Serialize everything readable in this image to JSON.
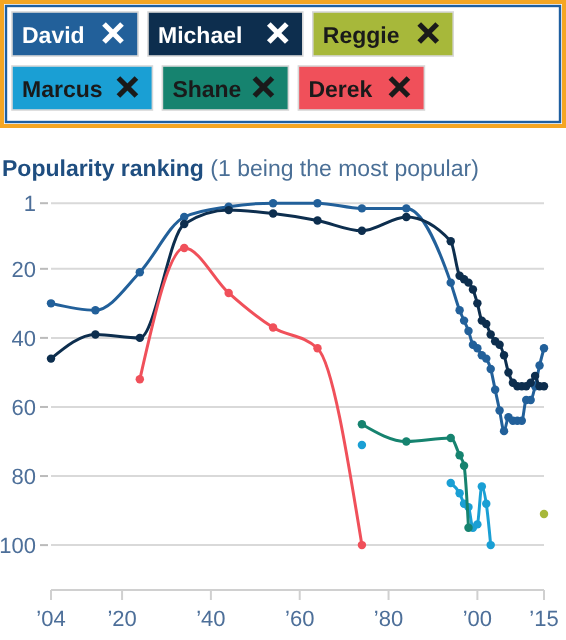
{
  "chart_data": {
    "type": "line",
    "title": "Popularity ranking",
    "subtitle": "(1 being the most popular)",
    "xlim": [
      1904,
      2015
    ],
    "xticks": [
      {
        "value": 1904,
        "label": "’04"
      },
      {
        "value": 1920,
        "label": "’20"
      },
      {
        "value": 1940,
        "label": "’40"
      },
      {
        "value": 1960,
        "label": "’60"
      },
      {
        "value": 1980,
        "label": "’80"
      },
      {
        "value": 2000,
        "label": "’00"
      },
      {
        "value": 2015,
        "label": "’15"
      }
    ],
    "ylim": [
      113,
      1
    ],
    "yticks": [
      1,
      20,
      40,
      60,
      80,
      100
    ],
    "grid": "y",
    "legend": "top",
    "marker": "circle",
    "series": [
      {
        "name": "David",
        "color": "#22609a",
        "x": [
          1904,
          1914,
          1924,
          1934,
          1944,
          1954,
          1964,
          1974,
          1984,
          1994,
          1996,
          1997,
          1998,
          1999,
          2000,
          2001,
          2002,
          2003,
          2004,
          2005,
          2006,
          2007,
          2008,
          2009,
          2010,
          2011,
          2012,
          2013,
          2014,
          2015
        ],
        "values": [
          30,
          32,
          21,
          5,
          2,
          1,
          1,
          2.5,
          2.5,
          24,
          32,
          35,
          38,
          42,
          43,
          45,
          46,
          49,
          55,
          61,
          67,
          63,
          64,
          64,
          64,
          58,
          58,
          54,
          48,
          43
        ]
      },
      {
        "name": "Michael",
        "color": "#0d2e4e",
        "x": [
          1904,
          1914,
          1924,
          1934,
          1944,
          1954,
          1964,
          1974,
          1984,
          1994,
          1996,
          1997,
          1998,
          1999,
          2000,
          2001,
          2002,
          2003,
          2004,
          2005,
          2006,
          2007,
          2008,
          2009,
          2010,
          2011,
          2012,
          2013,
          2014,
          2015
        ],
        "values": [
          46,
          39,
          40,
          7,
          3,
          4,
          6,
          9,
          5,
          12,
          22,
          23,
          24,
          26,
          30,
          35,
          36,
          39,
          41,
          42,
          45,
          50,
          53,
          54,
          54,
          54,
          53,
          51,
          54,
          54
        ]
      },
      {
        "name": "Reggie",
        "color": "#a7b83a",
        "x": [
          2015
        ],
        "values": [
          91
        ]
      },
      {
        "name": "Marcus",
        "color": "#1a9fd4",
        "x": [
          1974,
          1984,
          1994,
          1996,
          1997,
          1998,
          1999,
          2000,
          2001,
          2002,
          2003
        ],
        "values": [
          71,
          null,
          82,
          85,
          88,
          89,
          95,
          94,
          83,
          88,
          100
        ]
      },
      {
        "name": "Shane",
        "color": "#16836f",
        "x": [
          1974,
          1984,
          1994,
          1996,
          1997,
          1998
        ],
        "values": [
          65,
          70,
          69,
          74,
          77,
          95
        ]
      },
      {
        "name": "Derek",
        "color": "#f0505a",
        "x": [
          1924,
          1934,
          1944,
          1954,
          1964,
          1974
        ],
        "values": [
          52,
          14,
          27,
          37,
          43,
          100
        ]
      }
    ]
  }
}
